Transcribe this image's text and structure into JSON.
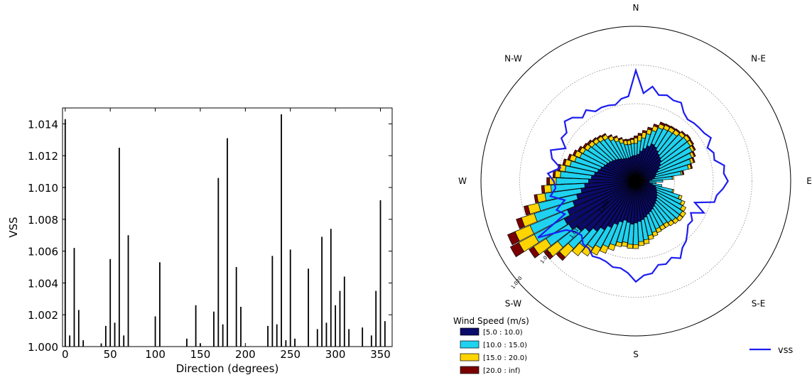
{
  "chart_data": [
    {
      "type": "bar",
      "xlabel": "Direction (degrees)",
      "ylabel": "VSS",
      "xlim": [
        -3,
        363
      ],
      "ylim": [
        1.0,
        1.015
      ],
      "xticks": [
        "0",
        "50",
        "100",
        "150",
        "200",
        "250",
        "300",
        "350"
      ],
      "yticks": [
        "1.000",
        "1.002",
        "1.004",
        "1.006",
        "1.008",
        "1.010",
        "1.012",
        "1.014"
      ],
      "x": [
        0,
        5,
        10,
        15,
        20,
        40,
        45,
        50,
        55,
        60,
        65,
        70,
        100,
        105,
        135,
        145,
        150,
        165,
        170,
        175,
        180,
        190,
        195,
        225,
        230,
        235,
        240,
        245,
        250,
        255,
        270,
        280,
        285,
        290,
        295,
        300,
        305,
        310,
        315,
        330,
        340,
        345,
        350,
        355
      ],
      "values": [
        1.0143,
        1.0007,
        1.0062,
        1.0023,
        1.0004,
        1.0002,
        1.0013,
        1.0055,
        1.0015,
        1.0125,
        1.0007,
        1.007,
        1.0019,
        1.0053,
        1.0005,
        1.0026,
        1.0002,
        1.0022,
        1.0106,
        1.0014,
        1.0131,
        1.005,
        1.0025,
        1.0013,
        1.0057,
        1.0014,
        1.0146,
        1.0004,
        1.0061,
        1.0005,
        1.0049,
        1.0011,
        1.0069,
        1.0015,
        1.0074,
        1.0026,
        1.0035,
        1.0044,
        1.0011,
        1.0012,
        1.0007,
        1.0035,
        1.0092,
        1.0016
      ]
    },
    {
      "type": "windrose",
      "direction_labels": [
        "N",
        "N-E",
        "E",
        "S-E",
        "S",
        "S-W",
        "W",
        "N-W"
      ],
      "radial_labels": [
        "1.000",
        "1.005",
        "1.010",
        "1.015",
        "1.020"
      ],
      "legend_title": "Wind Speed (m/s)",
      "legend_placement": "lower-left",
      "bins": [
        {
          "label": "[5.0 : 10.0)",
          "color": "#0b0b6b"
        },
        {
          "label": "[10.0 : 15.0)",
          "color": "#1fd2f0"
        },
        {
          "label": "[15.0 : 20.0)",
          "color": "#ffd400"
        },
        {
          "label": "[20.0 : inf)",
          "color": "#7a0000"
        }
      ],
      "directions": [
        0,
        5,
        10,
        15,
        20,
        25,
        30,
        35,
        40,
        45,
        50,
        55,
        60,
        65,
        70,
        75,
        80,
        85,
        90,
        95,
        100,
        105,
        110,
        115,
        120,
        125,
        130,
        135,
        140,
        145,
        150,
        155,
        160,
        165,
        170,
        175,
        180,
        185,
        190,
        195,
        200,
        205,
        210,
        215,
        220,
        225,
        230,
        235,
        240,
        245,
        250,
        255,
        260,
        265,
        270,
        275,
        280,
        285,
        290,
        295,
        300,
        305,
        310,
        315,
        320,
        325,
        330,
        335,
        340,
        345,
        350,
        355
      ],
      "frequencies": [
        [
          38,
          40,
          45,
          50,
          55,
          60,
          58,
          55,
          52,
          50,
          48,
          44,
          40,
          36,
          32,
          30,
          28,
          24,
          20,
          20,
          25,
          30,
          32,
          34,
          36,
          38,
          40,
          42,
          44,
          46,
          48,
          50,
          52,
          55,
          58,
          60,
          62,
          64,
          62,
          60,
          64,
          70,
          78,
          86,
          94,
          102,
          110,
          118,
          120,
          110,
          98,
          90,
          82,
          76,
          70,
          66,
          62,
          58,
          55,
          52,
          50,
          48,
          46,
          44,
          42,
          40,
          38,
          37,
          36,
          36,
          37,
          38
        ],
        [
          18,
          20,
          20,
          22,
          24,
          26,
          30,
          34,
          38,
          44,
          48,
          52,
          54,
          54,
          54,
          50,
          40,
          30,
          20,
          10,
          14,
          26,
          36,
          40,
          42,
          44,
          42,
          38,
          34,
          30,
          28,
          27,
          28,
          28,
          30,
          30,
          32,
          30,
          30,
          34,
          36,
          36,
          34,
          32,
          30,
          34,
          36,
          40,
          50,
          60,
          60,
          58,
          54,
          50,
          48,
          46,
          44,
          42,
          40,
          38,
          38,
          36,
          36,
          36,
          36,
          36,
          32,
          28,
          24,
          20,
          18,
          18
        ],
        [
          8,
          8,
          8,
          7,
          7,
          6,
          6,
          6,
          6,
          5,
          5,
          4,
          4,
          4,
          4,
          4,
          2,
          2,
          0,
          0,
          0,
          2,
          4,
          5,
          6,
          6,
          6,
          6,
          6,
          6,
          6,
          6,
          6,
          6,
          6,
          6,
          6,
          6,
          6,
          6,
          8,
          10,
          12,
          14,
          16,
          18,
          20,
          22,
          26,
          24,
          20,
          16,
          12,
          10,
          10,
          8,
          8,
          8,
          8,
          8,
          6,
          6,
          6,
          6,
          6,
          6,
          6,
          6,
          6,
          6,
          6,
          6
        ],
        [
          3,
          3,
          3,
          3,
          3,
          3,
          2,
          2,
          2,
          2,
          2,
          2,
          2,
          2,
          2,
          2,
          2,
          0,
          0,
          0,
          0,
          0,
          0,
          0,
          0,
          0,
          0,
          0,
          0,
          0,
          0,
          0,
          0,
          0,
          0,
          0,
          0,
          0,
          0,
          0,
          0,
          0,
          0,
          0,
          0,
          6,
          6,
          8,
          14,
          12,
          8,
          6,
          4,
          4,
          4,
          3,
          3,
          3,
          3,
          3,
          3,
          3,
          3,
          2,
          2,
          2,
          2,
          2,
          2,
          2,
          2,
          2
        ]
      ],
      "vss_series": {
        "name": "vss",
        "color": "#1c1cf0",
        "directions": [
          0,
          5,
          10,
          15,
          20,
          25,
          30,
          35,
          40,
          45,
          50,
          55,
          60,
          65,
          70,
          75,
          80,
          85,
          90,
          95,
          100,
          105,
          110,
          115,
          120,
          125,
          130,
          135,
          140,
          145,
          150,
          155,
          160,
          165,
          170,
          175,
          180,
          185,
          190,
          195,
          200,
          205,
          210,
          215,
          220,
          225,
          230,
          235,
          240,
          245,
          250,
          255,
          260,
          265,
          270,
          275,
          280,
          285,
          290,
          295,
          300,
          305,
          310,
          315,
          320,
          325,
          330,
          335,
          340,
          345,
          350,
          355
        ],
        "values": [
          1.0143,
          1.0114,
          1.0124,
          1.0115,
          1.0118,
          1.0115,
          1.0117,
          1.0108,
          1.0104,
          1.0106,
          1.0107,
          1.0108,
          1.0112,
          1.0102,
          1.0107,
          1.0105,
          1.0116,
          1.0114,
          1.0119,
          1.0113,
          1.0106,
          1.0105,
          1.0081,
          1.0097,
          1.0082,
          1.0089,
          1.0088,
          1.0094,
          1.0101,
          1.0105,
          1.0115,
          1.0109,
          1.0114,
          1.0112,
          1.0121,
          1.0122,
          1.013,
          1.0119,
          1.0114,
          1.0115,
          1.0111,
          1.011,
          1.0112,
          1.0106,
          1.0106,
          1.0099,
          1.0102,
          1.011,
          1.0146,
          1.0101,
          1.0109,
          1.0095,
          1.0112,
          1.0104,
          1.0106,
          1.0114,
          1.0099,
          1.0112,
          1.0117,
          1.01,
          1.0111,
          1.0109,
          1.012,
          1.0116,
          1.0107,
          1.0112,
          1.0104,
          1.0105,
          1.0104,
          1.0102,
          1.0108,
          1.011
        ]
      }
    }
  ]
}
